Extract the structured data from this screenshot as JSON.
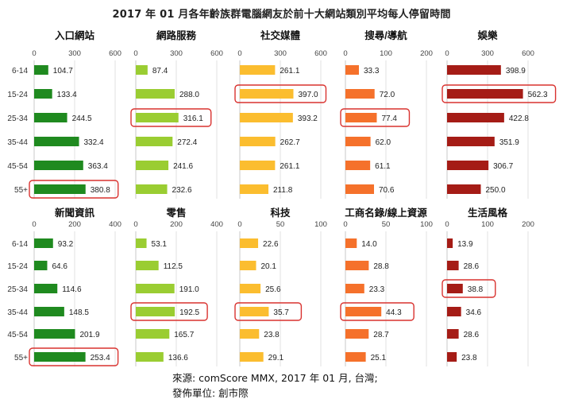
{
  "title": "2017 年 01 月各年齡族群電腦網友於前十大網站類別平均每人停留時間",
  "source_line1": "來源: comScore MMX, 2017 年 01 月, 台灣;",
  "source_line2": "發佈單位: 創市際",
  "chart_data": {
    "type": "bar",
    "orientation": "horizontal",
    "categories": [
      "6-14",
      "15-24",
      "25-34",
      "35-44",
      "45-54",
      "55+"
    ],
    "panels": [
      {
        "title": "入口網站",
        "ticks": [
          0,
          300,
          600
        ],
        "xlim": [
          0,
          600
        ],
        "color": "#1f8a1f",
        "values": [
          104.7,
          133.4,
          244.5,
          332.4,
          363.4,
          380.8
        ],
        "highlight": [
          5
        ]
      },
      {
        "title": "網路服務",
        "ticks": [
          0,
          300,
          600
        ],
        "xlim": [
          0,
          600
        ],
        "color": "#9acd32",
        "values": [
          87.4,
          288.0,
          316.1,
          272.4,
          241.6,
          232.6
        ],
        "highlight": [
          2
        ]
      },
      {
        "title": "社交媒體",
        "ticks": [
          0,
          300,
          600
        ],
        "xlim": [
          0,
          600
        ],
        "color": "#fbbd2f",
        "values": [
          261.1,
          397.0,
          393.2,
          262.7,
          261.1,
          211.8
        ],
        "highlight": [
          1
        ]
      },
      {
        "title": "搜尋/導航",
        "ticks": [
          0,
          100,
          200
        ],
        "xlim": [
          0,
          200
        ],
        "color": "#f5712b",
        "values": [
          33.3,
          72.0,
          77.4,
          62.0,
          61.1,
          70.6
        ],
        "highlight": [
          2
        ]
      },
      {
        "title": "娛樂",
        "ticks": [
          0,
          300,
          600
        ],
        "xlim": [
          0,
          600
        ],
        "color": "#a51c16",
        "values": [
          398.9,
          562.3,
          422.8,
          351.9,
          306.7,
          250.0
        ],
        "highlight": [
          1
        ]
      },
      {
        "title": "新聞資訊",
        "ticks": [
          0,
          200,
          400
        ],
        "xlim": [
          0,
          400
        ],
        "color": "#1f8a1f",
        "values": [
          93.2,
          64.6,
          114.6,
          148.5,
          201.9,
          253.4
        ],
        "highlight": [
          5
        ]
      },
      {
        "title": "零售",
        "ticks": [
          0,
          200,
          400
        ],
        "xlim": [
          0,
          400
        ],
        "color": "#9acd32",
        "values": [
          53.1,
          112.5,
          191.0,
          192.5,
          165.7,
          136.6
        ],
        "highlight": [
          3
        ]
      },
      {
        "title": "科技",
        "ticks": [
          0,
          50,
          100
        ],
        "xlim": [
          0,
          100
        ],
        "color": "#fbbd2f",
        "values": [
          22.6,
          20.1,
          25.6,
          35.7,
          23.8,
          29.1
        ],
        "highlight": [
          3
        ]
      },
      {
        "title": "工商名錄/線上資源",
        "ticks": [
          0,
          50,
          100
        ],
        "xlim": [
          0,
          100
        ],
        "color": "#f5712b",
        "values": [
          14.0,
          28.8,
          23.3,
          44.3,
          28.7,
          25.1
        ],
        "highlight": [
          3
        ]
      },
      {
        "title": "生活風格",
        "ticks": [
          0,
          100,
          200
        ],
        "xlim": [
          0,
          200
        ],
        "color": "#a51c16",
        "values": [
          13.9,
          28.6,
          38.8,
          34.6,
          28.6,
          23.8
        ],
        "highlight": [
          2
        ]
      }
    ],
    "gridlines": true,
    "legend": "none"
  }
}
